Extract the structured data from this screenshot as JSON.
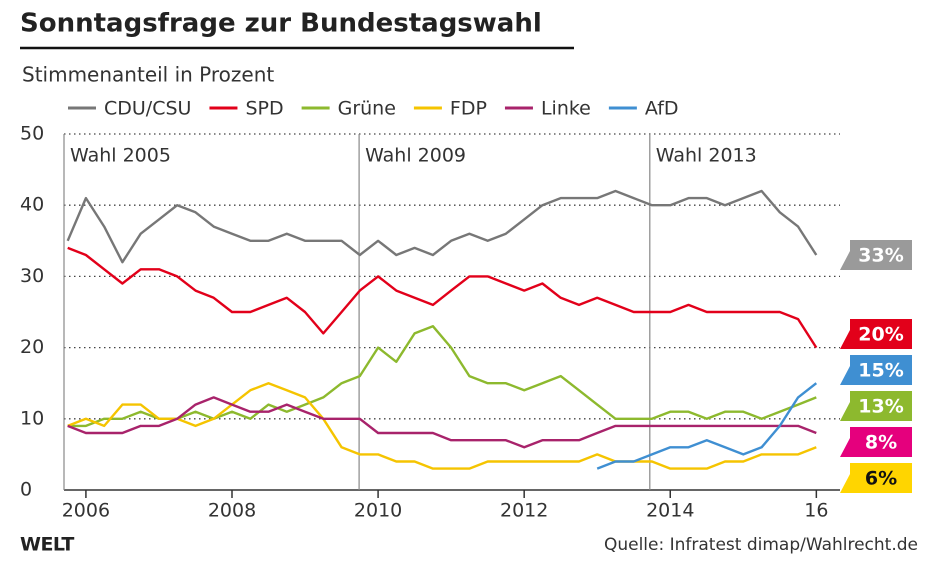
{
  "chart_data": {
    "type": "line",
    "title": "Sonntagsfrage zur Bundestagswahl",
    "subtitle": "Stimmenanteil in Prozent",
    "brand": "WELT",
    "source": "Quelle: Infratest dimap/Wahlrecht.de",
    "x": [
      2005.75,
      2006,
      2006.25,
      2006.5,
      2006.75,
      2007,
      2007.25,
      2007.5,
      2007.75,
      2008,
      2008.25,
      2008.5,
      2008.75,
      2009,
      2009.25,
      2009.5,
      2009.75,
      2010,
      2010.25,
      2010.5,
      2010.75,
      2011,
      2011.25,
      2011.5,
      2011.75,
      2012,
      2012.25,
      2012.5,
      2012.75,
      2013,
      2013.25,
      2013.5,
      2013.75,
      2014,
      2014.25,
      2014.5,
      2014.75,
      2015,
      2015.25,
      2015.5,
      2015.75,
      2016
    ],
    "xlim": [
      2005.7,
      2016.05
    ],
    "xticks": [
      2006,
      2008,
      2010,
      2012,
      2014,
      {
        "value": 2016,
        "label": "16"
      }
    ],
    "ylim": [
      0,
      50
    ],
    "yticks": [
      0,
      10,
      20,
      30,
      40,
      50
    ],
    "grid": true,
    "annotations": [
      {
        "x": 2005.7,
        "text": "Wahl 2005"
      },
      {
        "x": 2009.74,
        "text": "Wahl 2009"
      },
      {
        "x": 2013.72,
        "text": "Wahl 2013"
      }
    ],
    "series": [
      {
        "name": "CDU/CSU",
        "color": "#777777",
        "label_color": "#9a9a9a",
        "label_text_color": "#ffffff",
        "values": [
          35,
          41,
          37,
          32,
          36,
          38,
          40,
          39,
          37,
          36,
          35,
          35,
          36,
          35,
          35,
          35,
          33,
          35,
          33,
          34,
          33,
          35,
          36,
          35,
          36,
          38,
          40,
          41,
          41,
          41,
          42,
          41,
          40,
          40,
          41,
          41,
          40,
          41,
          42,
          39,
          37,
          33
        ],
        "value_labels": [
          null,
          null,
          null,
          null,
          null,
          null,
          null,
          null,
          null,
          null,
          null,
          null,
          null,
          null,
          null,
          null,
          null,
          null,
          null,
          null,
          null,
          null,
          null,
          null,
          null,
          null,
          null,
          null,
          null,
          null,
          null,
          null,
          null,
          null,
          null,
          null,
          null,
          null,
          null,
          null,
          null,
          "33%"
        ]
      },
      {
        "name": "SPD",
        "color": "#e2001a",
        "label_color": "#e2001a",
        "label_text_color": "#ffffff",
        "values": [
          34,
          33,
          31,
          29,
          31,
          31,
          30,
          28,
          27,
          25,
          25,
          26,
          27,
          25,
          22,
          25,
          28,
          30,
          28,
          27,
          26,
          28,
          30,
          30,
          29,
          28,
          29,
          27,
          26,
          27,
          26,
          25,
          25,
          25,
          26,
          25,
          25,
          25,
          25,
          25,
          24,
          20
        ],
        "value_labels": [
          null,
          null,
          null,
          null,
          null,
          null,
          null,
          null,
          null,
          null,
          null,
          null,
          null,
          null,
          null,
          null,
          null,
          null,
          null,
          null,
          null,
          null,
          null,
          null,
          null,
          null,
          null,
          null,
          null,
          null,
          null,
          null,
          null,
          null,
          null,
          null,
          null,
          null,
          null,
          null,
          null,
          "20%"
        ]
      },
      {
        "name": "Grüne",
        "color": "#8db92e",
        "label_color": "#8db92e",
        "label_text_color": "#ffffff",
        "values": [
          9,
          9,
          10,
          10,
          11,
          10,
          10,
          11,
          10,
          11,
          10,
          12,
          11,
          12,
          13,
          15,
          16,
          20,
          18,
          22,
          23,
          20,
          16,
          15,
          15,
          14,
          15,
          16,
          14,
          12,
          10,
          10,
          10,
          11,
          11,
          10,
          11,
          11,
          10,
          11,
          12,
          13
        ],
        "value_labels": [
          null,
          null,
          null,
          null,
          null,
          null,
          null,
          null,
          null,
          null,
          null,
          null,
          null,
          null,
          null,
          null,
          null,
          null,
          null,
          null,
          null,
          null,
          null,
          null,
          null,
          null,
          null,
          null,
          null,
          null,
          null,
          null,
          null,
          null,
          null,
          null,
          null,
          null,
          null,
          null,
          null,
          "13%"
        ]
      },
      {
        "name": "FDP",
        "color": "#f5c400",
        "label_color": "#ffd500",
        "label_text_color": "#111111",
        "values": [
          9,
          10,
          9,
          12,
          12,
          10,
          10,
          9,
          10,
          12,
          14,
          15,
          14,
          13,
          10,
          6,
          5,
          5,
          4,
          4,
          3,
          3,
          3,
          4,
          4,
          4,
          4,
          4,
          4,
          5,
          4,
          4,
          4,
          3,
          3,
          3,
          4,
          4,
          5,
          5,
          5,
          6
        ],
        "value_labels": [
          null,
          null,
          null,
          null,
          null,
          null,
          null,
          null,
          null,
          null,
          null,
          null,
          null,
          null,
          null,
          null,
          null,
          null,
          null,
          null,
          null,
          null,
          null,
          null,
          null,
          null,
          null,
          null,
          null,
          null,
          null,
          null,
          null,
          null,
          null,
          null,
          null,
          null,
          null,
          null,
          null,
          "6%"
        ]
      },
      {
        "name": "Linke",
        "color": "#a8236b",
        "label_color": "#e5007d",
        "label_text_color": "#ffffff",
        "values": [
          9,
          8,
          8,
          8,
          9,
          9,
          10,
          12,
          13,
          12,
          11,
          11,
          12,
          11,
          10,
          10,
          10,
          8,
          8,
          8,
          8,
          7,
          7,
          7,
          7,
          6,
          7,
          7,
          7,
          8,
          9,
          9,
          9,
          9,
          9,
          9,
          9,
          9,
          9,
          9,
          9,
          8
        ],
        "value_labels": [
          null,
          null,
          null,
          null,
          null,
          null,
          null,
          null,
          null,
          null,
          null,
          null,
          null,
          null,
          null,
          null,
          null,
          null,
          null,
          null,
          null,
          null,
          null,
          null,
          null,
          null,
          null,
          null,
          null,
          null,
          null,
          null,
          null,
          null,
          null,
          null,
          null,
          null,
          null,
          null,
          null,
          "8%"
        ]
      },
      {
        "name": "AfD",
        "color": "#3f8fd2",
        "label_color": "#3f8fd2",
        "label_text_color": "#ffffff",
        "values": [
          null,
          null,
          null,
          null,
          null,
          null,
          null,
          null,
          null,
          null,
          null,
          null,
          null,
          null,
          null,
          null,
          null,
          null,
          null,
          null,
          null,
          null,
          null,
          null,
          null,
          null,
          null,
          null,
          null,
          3,
          4,
          4,
          5,
          6,
          6,
          7,
          6,
          5,
          6,
          9,
          13,
          15
        ],
        "value_labels": [
          null,
          null,
          null,
          null,
          null,
          null,
          null,
          null,
          null,
          null,
          null,
          null,
          null,
          null,
          null,
          null,
          null,
          null,
          null,
          null,
          null,
          null,
          null,
          null,
          null,
          null,
          null,
          null,
          null,
          null,
          null,
          null,
          null,
          null,
          null,
          null,
          null,
          null,
          null,
          null,
          null,
          "15%"
        ]
      }
    ]
  }
}
